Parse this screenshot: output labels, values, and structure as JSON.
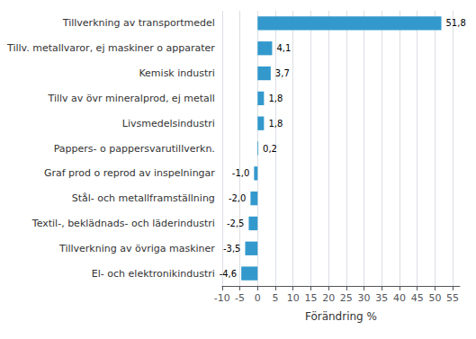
{
  "chart_data": {
    "type": "bar",
    "orientation": "horizontal",
    "categories": [
      "El- och elektronikindustri",
      "Tillverkning av övriga maskiner",
      "Textil-, beklädnads- och läderindustri",
      "Stål- och metallframställning",
      "Graf prod o reprod av inspelningar",
      "Pappers- o pappersvarutillverkn.",
      "Livsmedelsindustri",
      "Tillv av övr mineralprod, ej metall",
      "Kemisk industri",
      "Tillv. metallvaror, ej maskiner o apparater",
      "Tillverkning av transportmedel"
    ],
    "values": [
      -4.6,
      -3.5,
      -2.5,
      -2.0,
      -1.0,
      0.2,
      1.8,
      1.8,
      3.7,
      4.1,
      51.8
    ],
    "value_labels": [
      "-4,6",
      "-3,5",
      "-2,5",
      "-2,0",
      "-1,0",
      "0,2",
      "1,8",
      "1,8",
      "3,7",
      "4,1",
      "51,8"
    ],
    "color": "#3399cc",
    "xlabel": "Förändring %",
    "xlim": [
      -10,
      57
    ],
    "xticks": [
      -10,
      -5,
      0,
      5,
      10,
      15,
      20,
      25,
      30,
      35,
      40,
      45,
      50,
      55
    ],
    "grid": true,
    "data_labels": true
  }
}
